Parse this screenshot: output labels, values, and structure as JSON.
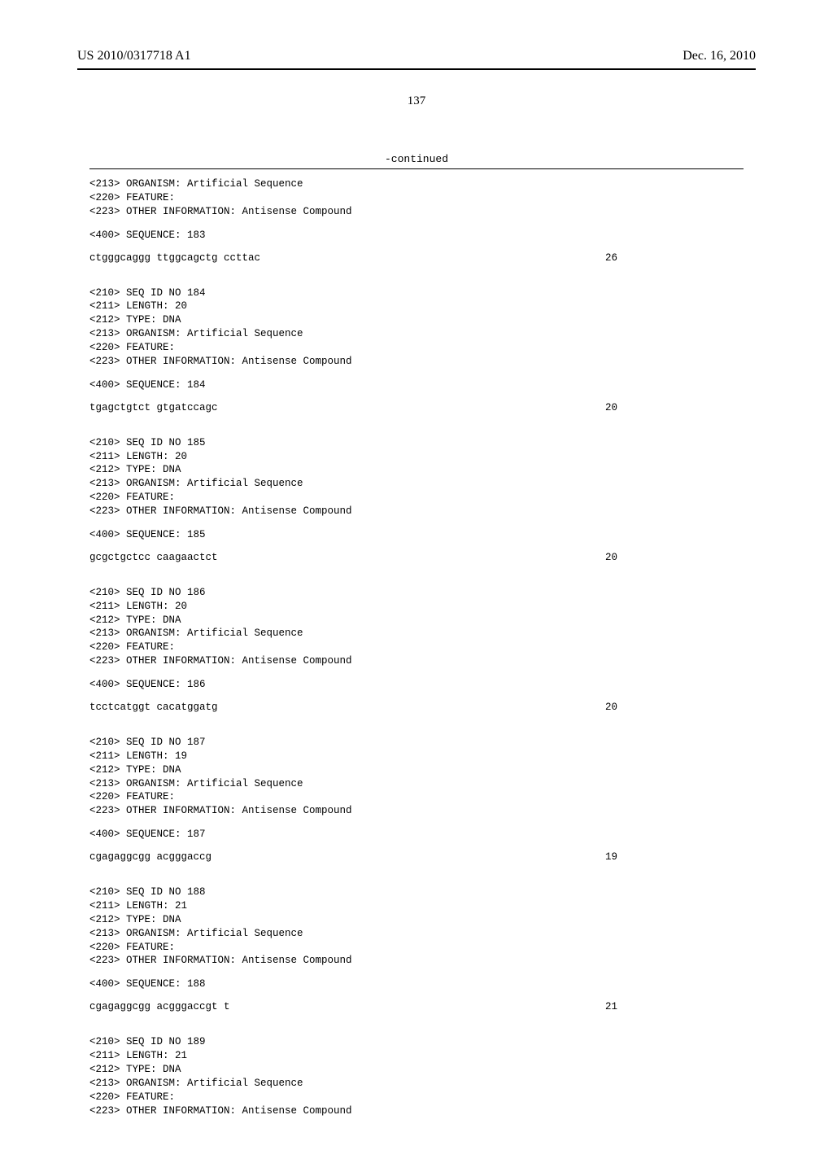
{
  "header": {
    "pub_number": "US 2010/0317718 A1",
    "pub_date": "Dec. 16, 2010",
    "page_number": "137"
  },
  "continued_label": "-continued",
  "entries": [
    {
      "pre_lines": [
        "<213> ORGANISM: Artificial Sequence",
        "<220> FEATURE:",
        "<223> OTHER INFORMATION: Antisense Compound"
      ],
      "seq_header": "<400> SEQUENCE: 183",
      "sequence": "ctgggcaggg ttggcagctg ccttac",
      "length": "26"
    },
    {
      "pre_lines": [
        "<210> SEQ ID NO 184",
        "<211> LENGTH: 20",
        "<212> TYPE: DNA",
        "<213> ORGANISM: Artificial Sequence",
        "<220> FEATURE:",
        "<223> OTHER INFORMATION: Antisense Compound"
      ],
      "seq_header": "<400> SEQUENCE: 184",
      "sequence": "tgagctgtct gtgatccagc",
      "length": "20"
    },
    {
      "pre_lines": [
        "<210> SEQ ID NO 185",
        "<211> LENGTH: 20",
        "<212> TYPE: DNA",
        "<213> ORGANISM: Artificial Sequence",
        "<220> FEATURE:",
        "<223> OTHER INFORMATION: Antisense Compound"
      ],
      "seq_header": "<400> SEQUENCE: 185",
      "sequence": "gcgctgctcc caagaactct",
      "length": "20"
    },
    {
      "pre_lines": [
        "<210> SEQ ID NO 186",
        "<211> LENGTH: 20",
        "<212> TYPE: DNA",
        "<213> ORGANISM: Artificial Sequence",
        "<220> FEATURE:",
        "<223> OTHER INFORMATION: Antisense Compound"
      ],
      "seq_header": "<400> SEQUENCE: 186",
      "sequence": "tcctcatggt cacatggatg",
      "length": "20"
    },
    {
      "pre_lines": [
        "<210> SEQ ID NO 187",
        "<211> LENGTH: 19",
        "<212> TYPE: DNA",
        "<213> ORGANISM: Artificial Sequence",
        "<220> FEATURE:",
        "<223> OTHER INFORMATION: Antisense Compound"
      ],
      "seq_header": "<400> SEQUENCE: 187",
      "sequence": "cgagaggcgg acgggaccg",
      "length": "19"
    },
    {
      "pre_lines": [
        "<210> SEQ ID NO 188",
        "<211> LENGTH: 21",
        "<212> TYPE: DNA",
        "<213> ORGANISM: Artificial Sequence",
        "<220> FEATURE:",
        "<223> OTHER INFORMATION: Antisense Compound"
      ],
      "seq_header": "<400> SEQUENCE: 188",
      "sequence": "cgagaggcgg acgggaccgt t",
      "length": "21"
    },
    {
      "pre_lines": [
        "<210> SEQ ID NO 189",
        "<211> LENGTH: 21",
        "<212> TYPE: DNA",
        "<213> ORGANISM: Artificial Sequence",
        "<220> FEATURE:",
        "<223> OTHER INFORMATION: Antisense Compound"
      ],
      "seq_header": null,
      "sequence": null,
      "length": null
    }
  ]
}
